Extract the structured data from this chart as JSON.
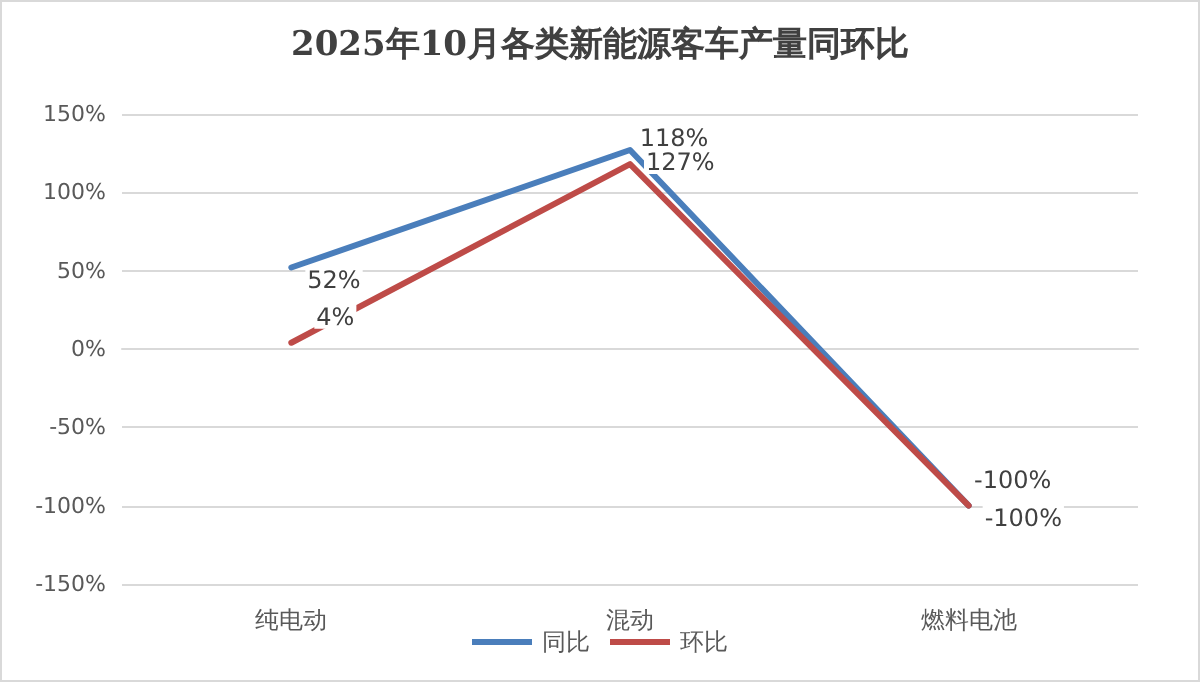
{
  "chart_data": {
    "type": "line",
    "title": "2025年10月各类新能源客车产量同环比",
    "categories": [
      "纯电动",
      "混动",
      "燃料电池"
    ],
    "series": [
      {
        "name": "同比",
        "color": "#4a7ebb",
        "values": [
          52,
          127,
          -100
        ]
      },
      {
        "name": "环比",
        "color": "#be4b48",
        "values": [
          4,
          118,
          -100
        ]
      }
    ],
    "ylim": [
      -150,
      150
    ],
    "yticks": [
      {
        "value": -150,
        "label": "-150%"
      },
      {
        "value": -100,
        "label": "-100%"
      },
      {
        "value": -50,
        "label": "-50%"
      },
      {
        "value": 0,
        "label": "0%"
      },
      {
        "value": 50,
        "label": "50%"
      },
      {
        "value": 100,
        "label": "100%"
      },
      {
        "value": 150,
        "label": "150%"
      }
    ],
    "value_labels": [
      [
        "52%",
        "127%",
        "-100%"
      ],
      [
        "4%",
        "118%",
        "-100%"
      ]
    ],
    "grid": "y",
    "legend": "bottom",
    "marker": "none",
    "line_style": "solid"
  }
}
